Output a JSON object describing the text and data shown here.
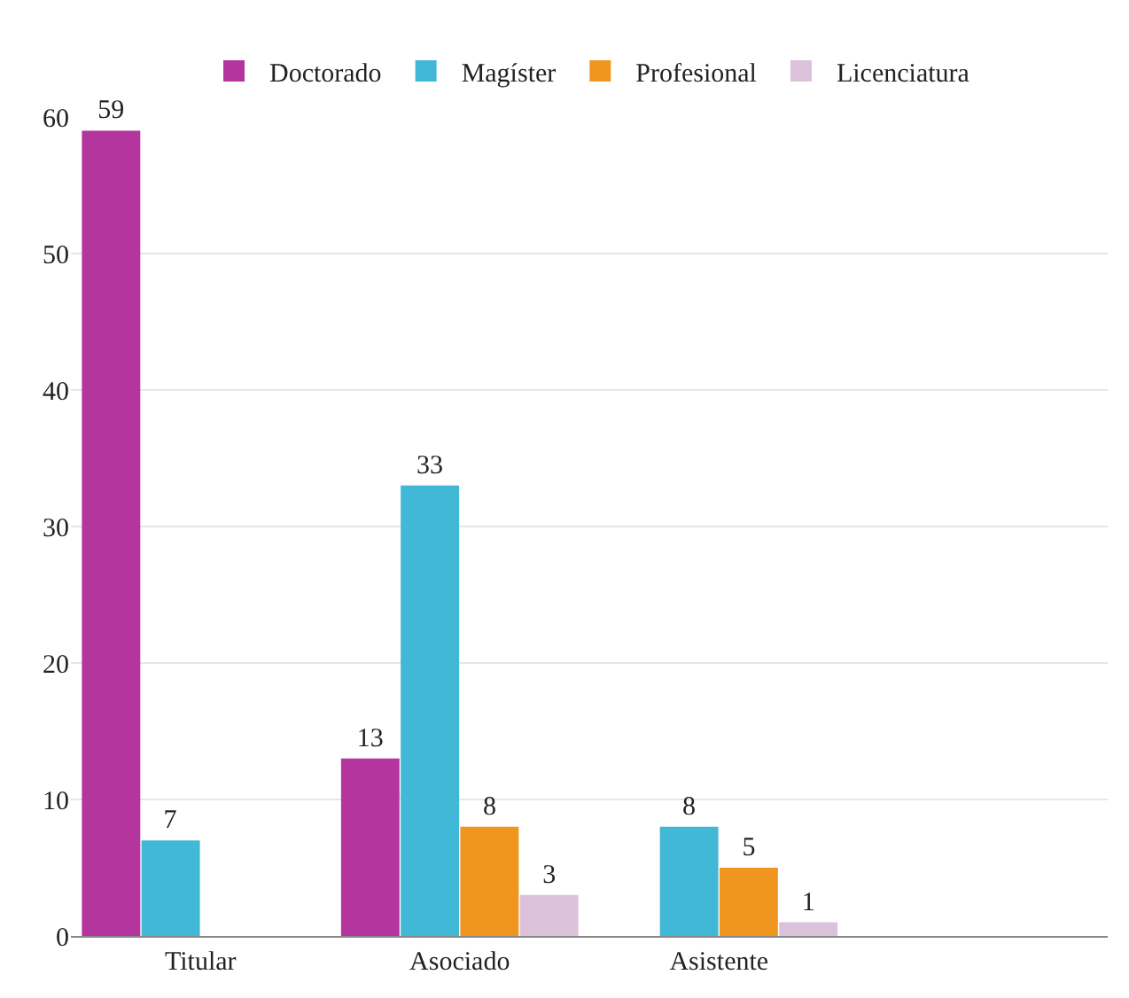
{
  "chart_data": {
    "type": "bar",
    "categories": [
      "Titular",
      "Asociado",
      "Asistente",
      null
    ],
    "series": [
      {
        "name": "Doctorado",
        "color": "#b5359f",
        "values": [
          59,
          13,
          null,
          null
        ]
      },
      {
        "name": "Magíster",
        "color": "#41b8d6",
        "values": [
          7,
          33,
          8,
          null
        ]
      },
      {
        "name": "Profesional",
        "color": "#f0951f",
        "values": [
          null,
          8,
          5,
          null
        ]
      },
      {
        "name": "Licenciatura",
        "color": "#dcc1da",
        "values": [
          null,
          3,
          1,
          null
        ]
      }
    ],
    "ylim": [
      0,
      60
    ],
    "yticks": [
      0,
      10,
      20,
      30,
      40,
      50,
      60
    ],
    "grid": "y",
    "legend": "top",
    "data_labels": true
  }
}
